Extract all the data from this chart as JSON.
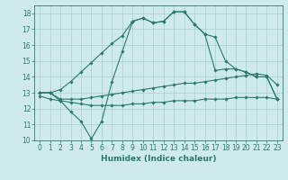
{
  "line1_x": [
    0,
    1,
    2,
    3,
    4,
    5,
    6,
    7,
    8,
    9,
    10,
    11,
    12,
    13,
    14,
    15,
    16,
    17,
    18,
    19,
    20,
    21,
    22,
    23
  ],
  "line1_y": [
    13.0,
    13.0,
    13.2,
    13.7,
    14.3,
    14.9,
    15.5,
    16.1,
    16.6,
    17.5,
    17.7,
    17.4,
    17.5,
    18.1,
    18.1,
    17.3,
    16.7,
    16.5,
    15.0,
    14.5,
    14.3,
    14.0,
    14.0,
    12.6
  ],
  "line2_x": [
    0,
    1,
    2,
    3,
    4,
    5,
    6,
    7,
    8,
    9,
    10,
    11,
    12,
    13,
    14,
    15,
    16,
    17,
    18,
    19,
    20,
    21,
    22,
    23
  ],
  "line2_y": [
    13.0,
    13.0,
    12.5,
    11.8,
    11.2,
    10.1,
    11.2,
    13.7,
    15.6,
    17.5,
    17.7,
    17.4,
    17.5,
    18.1,
    18.1,
    17.3,
    16.7,
    14.4,
    14.5,
    14.5,
    14.3,
    14.0,
    14.0,
    12.6
  ],
  "line3_x": [
    0,
    1,
    2,
    3,
    4,
    5,
    6,
    7,
    8,
    9,
    10,
    11,
    12,
    13,
    14,
    15,
    16,
    17,
    18,
    19,
    20,
    21,
    22,
    23
  ],
  "line3_y": [
    13.0,
    13.0,
    12.6,
    12.6,
    12.6,
    12.7,
    12.8,
    12.9,
    13.0,
    13.1,
    13.2,
    13.3,
    13.4,
    13.5,
    13.6,
    13.6,
    13.7,
    13.8,
    13.9,
    14.0,
    14.1,
    14.2,
    14.1,
    13.5
  ],
  "line4_x": [
    0,
    1,
    2,
    3,
    4,
    5,
    6,
    7,
    8,
    9,
    10,
    11,
    12,
    13,
    14,
    15,
    16,
    17,
    18,
    19,
    20,
    21,
    22,
    23
  ],
  "line4_y": [
    12.8,
    12.6,
    12.5,
    12.4,
    12.3,
    12.2,
    12.2,
    12.2,
    12.2,
    12.3,
    12.3,
    12.4,
    12.4,
    12.5,
    12.5,
    12.5,
    12.6,
    12.6,
    12.6,
    12.7,
    12.7,
    12.7,
    12.7,
    12.6
  ],
  "color": "#2a7a6a",
  "bg_color": "#ceeaea",
  "grid_color": "#aacece",
  "xlabel": "Humidex (Indice chaleur)",
  "ylim": [
    10,
    18.5
  ],
  "xlim": [
    -0.5,
    23.5
  ],
  "yticks": [
    10,
    11,
    12,
    13,
    14,
    15,
    16,
    17,
    18
  ],
  "xticks": [
    0,
    1,
    2,
    3,
    4,
    5,
    6,
    7,
    8,
    9,
    10,
    11,
    12,
    13,
    14,
    15,
    16,
    17,
    18,
    19,
    20,
    21,
    22,
    23
  ],
  "xlabel_fontsize": 6.5,
  "tick_fontsize": 5.5
}
